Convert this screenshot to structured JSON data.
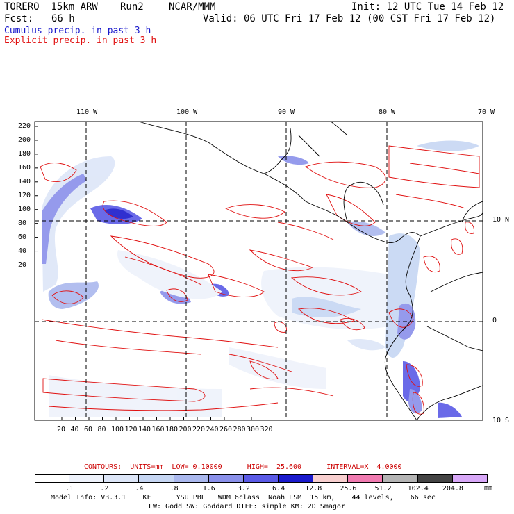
{
  "header": {
    "model": "TORERO  15km ARW",
    "run": "Run2",
    "center": "NCAR/MMM",
    "init": "Init: 12 UTC Tue 14 Feb 12",
    "fcst_label": "Fcst:",
    "fcst_value": "66 h",
    "valid": "Valid: 06 UTC Fri 17 Feb 12 (00 CST Fri 17 Feb 12)",
    "line_blue": "Cumulus precip. in past 3 h",
    "line_red": "Explicit precip. in past 3 h"
  },
  "map": {
    "top_labels": [
      "110 W",
      "100 W",
      "90 W",
      "80 W",
      "70 W"
    ],
    "right_labels": [
      "10 N",
      "0",
      "10 S"
    ],
    "y_ticks": [
      "220",
      "200",
      "180",
      "160",
      "140",
      "120",
      "100",
      "80",
      "60",
      "40",
      "20"
    ],
    "x_ticks": [
      "20",
      "40",
      "60",
      "80",
      "100",
      "120",
      "140",
      "160",
      "180",
      "200",
      "220",
      "240",
      "260",
      "280",
      "300",
      "320"
    ]
  },
  "colorbar": {
    "contours_text": "CONTOURS:  UNITS=mm  LOW= 0.10000      HIGH=  25.600      INTERVAL=X  4.0000",
    "labels": [
      ".1",
      ".2",
      ".4",
      ".8",
      "1.6",
      "3.2",
      "6.4",
      "12.8",
      "25.6",
      "51.2",
      "102.4",
      "204.8"
    ],
    "unit": "mm",
    "colors": [
      "#ffffff",
      "#eef2fb",
      "#dde6f8",
      "#c6d6f3",
      "#aab8ee",
      "#8a90ea",
      "#5a5ae6",
      "#1a1acc",
      "#f8cfcf",
      "#f07ab0",
      "#b4b4b4",
      "#444444",
      "#d8a8f8"
    ]
  },
  "footer": {
    "line1": "Model Info: V3.3.1    KF      YSU PBL   WDM 6class  Noah LSM  15 km,    44 levels,    66 sec",
    "line2": "LW: Godd SW: Goddard DIFF: simple KM: 2D Smagor"
  }
}
